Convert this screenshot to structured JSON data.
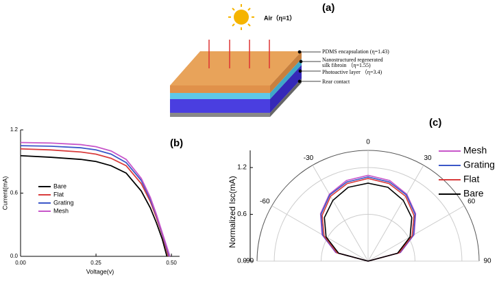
{
  "diagram": {
    "panel_label": "(a)",
    "air_label": "Air（η=1）",
    "layers": [
      "PDMS encapsulation (η=1.43)",
      "Nanostructured regenerated",
      "silk fibroin （η=1.55)",
      "Photoactive layer （η=3.4)",
      "Rear contact"
    ]
  },
  "chart_data": [
    {
      "type": "line",
      "panel_label": "(b)",
      "x_label": "Voltage(v)",
      "y_label": "Current(mA)",
      "xlim": [
        0,
        0.527
      ],
      "xticks": [
        {
          "value": 0,
          "label": "0.00"
        },
        0.25,
        {
          "value": 0.5,
          "label": "0.50"
        }
      ],
      "ylim": [
        0,
        1.2
      ],
      "yticks": [
        {
          "value": 0,
          "label": "0.0"
        },
        0.6,
        1.2
      ],
      "series": [
        {
          "name": "Bare",
          "color": "#000000",
          "x": [
            0,
            0.1,
            0.2,
            0.25,
            0.3,
            0.35,
            0.4,
            0.43,
            0.45,
            0.47,
            0.485
          ],
          "values": [
            0.955,
            0.94,
            0.92,
            0.9,
            0.86,
            0.79,
            0.62,
            0.46,
            0.32,
            0.16,
            0
          ]
        },
        {
          "name": "Flat",
          "color": "#d93b3b",
          "x": [
            0,
            0.1,
            0.2,
            0.25,
            0.3,
            0.35,
            0.4,
            0.43,
            0.45,
            0.47,
            0.49
          ],
          "values": [
            1.02,
            1.01,
            0.99,
            0.97,
            0.93,
            0.86,
            0.69,
            0.52,
            0.37,
            0.2,
            0
          ]
        },
        {
          "name": "Grating",
          "color": "#3a56c8",
          "x": [
            0,
            0.1,
            0.2,
            0.25,
            0.3,
            0.35,
            0.4,
            0.43,
            0.45,
            0.47,
            0.493
          ],
          "values": [
            1.05,
            1.045,
            1.03,
            1.01,
            0.97,
            0.89,
            0.72,
            0.54,
            0.39,
            0.21,
            0
          ]
        },
        {
          "name": "Mesh",
          "color": "#c755c9",
          "x": [
            0,
            0.1,
            0.2,
            0.25,
            0.3,
            0.35,
            0.4,
            0.43,
            0.45,
            0.47,
            0.495
          ],
          "values": [
            1.08,
            1.075,
            1.06,
            1.04,
            1.0,
            0.92,
            0.74,
            0.56,
            0.4,
            0.22,
            0
          ]
        }
      ]
    },
    {
      "type": "polar",
      "panel_label": "(c)",
      "y_label": "Normalized Isc(mA)",
      "xlim": [
        -90,
        90
      ],
      "xticks": [
        -90,
        -60,
        -30,
        0,
        30,
        60,
        90
      ],
      "ylim": [
        0,
        1.42
      ],
      "yticks": [
        {
          "value": 0,
          "label": "0.0"
        },
        0.6,
        1.2
      ],
      "series": [
        {
          "name": "Mesh",
          "color": "#c755c9",
          "x": [
            -90,
            -75,
            -60,
            -45,
            -30,
            -15,
            0,
            15,
            30,
            45,
            60,
            75,
            90
          ],
          "values": [
            0,
            0.43,
            0.68,
            0.86,
            0.99,
            1.07,
            1.1,
            1.07,
            0.99,
            0.86,
            0.68,
            0.43,
            0
          ]
        },
        {
          "name": "Grating",
          "color": "#3a56c8",
          "x": [
            -90,
            -75,
            -60,
            -45,
            -30,
            -15,
            0,
            15,
            30,
            45,
            60,
            75,
            90
          ],
          "values": [
            0,
            0.42,
            0.67,
            0.85,
            0.98,
            1.05,
            1.08,
            1.05,
            0.98,
            0.85,
            0.67,
            0.42,
            0
          ]
        },
        {
          "name": "Flat",
          "color": "#d93b3b",
          "x": [
            -90,
            -75,
            -60,
            -45,
            -30,
            -15,
            0,
            15,
            30,
            45,
            60,
            75,
            90
          ],
          "values": [
            0,
            0.41,
            0.65,
            0.83,
            0.96,
            1.03,
            1.06,
            1.03,
            0.96,
            0.83,
            0.65,
            0.41,
            0
          ]
        },
        {
          "name": "Bare",
          "color": "#000000",
          "x": [
            -90,
            -75,
            -60,
            -45,
            -30,
            -15,
            0,
            15,
            30,
            45,
            60,
            75,
            90
          ],
          "values": [
            0,
            0.39,
            0.62,
            0.79,
            0.9,
            0.98,
            1.0,
            0.98,
            0.9,
            0.79,
            0.62,
            0.39,
            0
          ]
        }
      ]
    }
  ]
}
